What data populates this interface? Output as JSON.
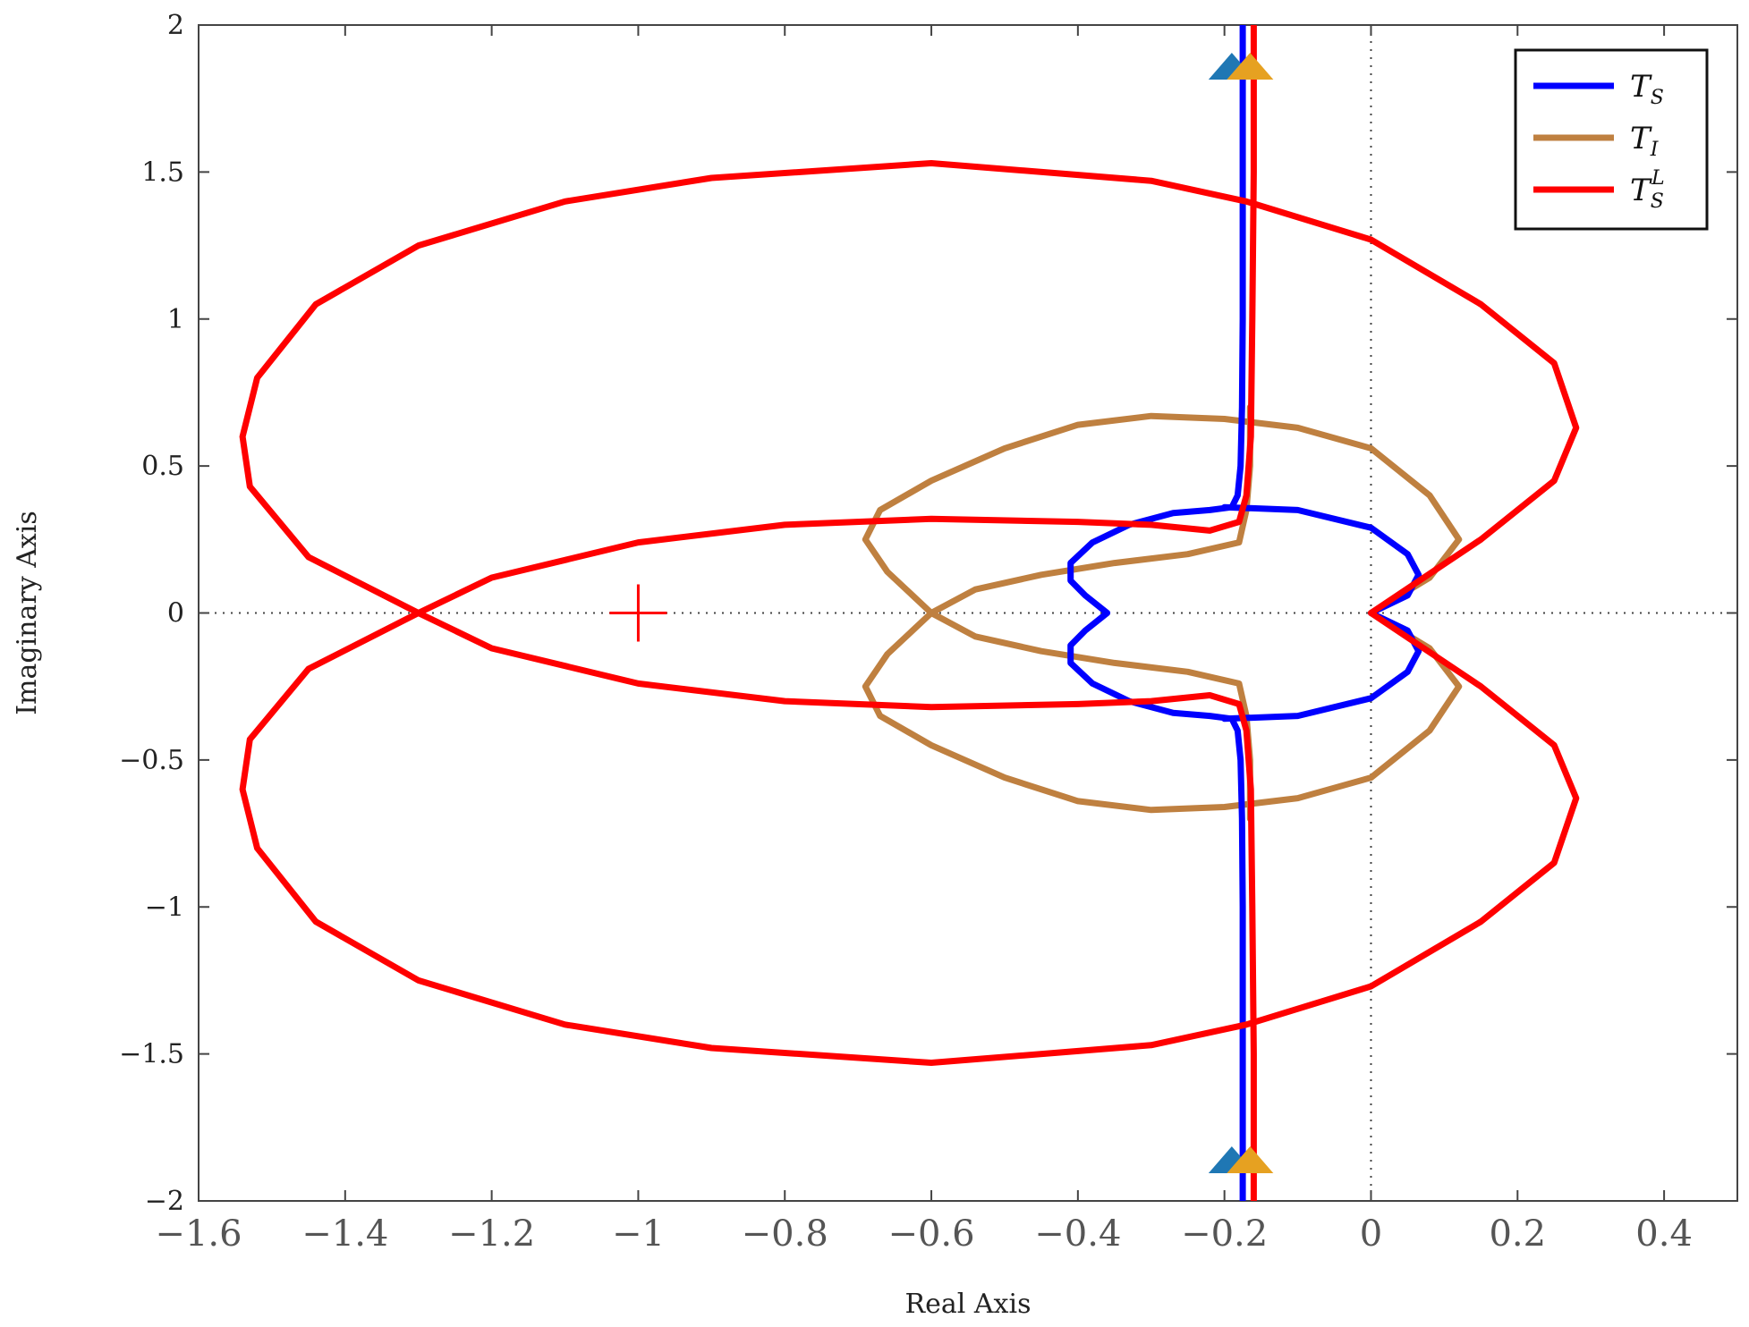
{
  "chart_data": {
    "type": "line",
    "title": "",
    "xlabel": "Real Axis",
    "ylabel": "Imaginary Axis",
    "xlim": [
      -1.6,
      0.5
    ],
    "ylim": [
      -2,
      2
    ],
    "x_ticks": [
      "−1.6",
      "−1.4",
      "−1.2",
      "−1",
      "−0.8",
      "−0.6",
      "−0.4",
      "−0.2",
      "0",
      "0.2",
      "0.4"
    ],
    "x_tick_values": [
      -1.6,
      -1.4,
      -1.2,
      -1,
      -0.8,
      -0.6,
      -0.4,
      -0.2,
      0,
      0.2,
      0.4
    ],
    "y_ticks": [
      "2",
      "1.5",
      "1",
      "0.5",
      "0",
      "−0.5",
      "−1",
      "−1.5",
      "−2"
    ],
    "y_tick_values": [
      2,
      1.5,
      1,
      0.5,
      0,
      -0.5,
      -1,
      -1.5,
      -2
    ],
    "grid": false,
    "reference_lines": {
      "x": 0,
      "y": 0,
      "style": "dotted"
    },
    "critical_point": {
      "x": -1,
      "y": 0,
      "marker": "+",
      "color": "#ff0000"
    },
    "legend_position": "top-right",
    "series": [
      {
        "name": "T_S",
        "label_main": "T",
        "label_sub": "S",
        "label_sup": "",
        "color": "#0000ff",
        "points": [
          [
            -0.175,
            2.0
          ],
          [
            -0.175,
            1.5
          ],
          [
            -0.175,
            1.0
          ],
          [
            -0.176,
            0.7
          ],
          [
            -0.178,
            0.5
          ],
          [
            -0.182,
            0.4
          ],
          [
            -0.19,
            0.36
          ],
          [
            -0.22,
            0.35
          ],
          [
            -0.27,
            0.34
          ],
          [
            -0.33,
            0.3
          ],
          [
            -0.38,
            0.24
          ],
          [
            -0.41,
            0.17
          ],
          [
            -0.41,
            0.11
          ],
          [
            -0.39,
            0.06
          ],
          [
            -0.36,
            0.0
          ],
          [
            -0.39,
            -0.06
          ],
          [
            -0.41,
            -0.11
          ],
          [
            -0.41,
            -0.17
          ],
          [
            -0.38,
            -0.24
          ],
          [
            -0.33,
            -0.3
          ],
          [
            -0.27,
            -0.34
          ],
          [
            -0.22,
            -0.35
          ],
          [
            -0.19,
            -0.36
          ],
          [
            -0.182,
            -0.4
          ],
          [
            -0.178,
            -0.5
          ],
          [
            -0.176,
            -0.7
          ],
          [
            -0.175,
            -1.0
          ],
          [
            -0.175,
            -1.5
          ],
          [
            -0.175,
            -2.0
          ]
        ],
        "closed_loop_branch": [
          [
            -0.2,
            0.36
          ],
          [
            -0.1,
            0.35
          ],
          [
            0.0,
            0.29
          ],
          [
            0.05,
            0.2
          ],
          [
            0.065,
            0.13
          ],
          [
            0.05,
            0.06
          ],
          [
            0.0,
            0.0
          ],
          [
            0.05,
            -0.06
          ],
          [
            0.065,
            -0.13
          ],
          [
            0.05,
            -0.2
          ],
          [
            0.0,
            -0.29
          ],
          [
            -0.1,
            -0.35
          ],
          [
            -0.2,
            -0.36
          ]
        ]
      },
      {
        "name": "T_I",
        "label_main": "T",
        "label_sub": "I",
        "label_sup": "",
        "color": "#bf8040",
        "points": [
          [
            0.0,
            0.0
          ],
          [
            0.08,
            0.12
          ],
          [
            0.12,
            0.25
          ],
          [
            0.08,
            0.4
          ],
          [
            0.0,
            0.56
          ],
          [
            -0.1,
            0.63
          ],
          [
            -0.2,
            0.66
          ],
          [
            -0.3,
            0.67
          ],
          [
            -0.4,
            0.64
          ],
          [
            -0.5,
            0.56
          ],
          [
            -0.6,
            0.45
          ],
          [
            -0.67,
            0.35
          ],
          [
            -0.69,
            0.25
          ],
          [
            -0.66,
            0.14
          ],
          [
            -0.6,
            0.0
          ],
          [
            -0.54,
            -0.08
          ],
          [
            -0.45,
            -0.13
          ],
          [
            -0.35,
            -0.17
          ],
          [
            -0.25,
            -0.2
          ],
          [
            -0.18,
            -0.24
          ],
          [
            -0.17,
            -0.35
          ],
          [
            -0.165,
            -0.5
          ],
          [
            -0.165,
            -0.7
          ]
        ],
        "points_upper_branch": [
          [
            -0.165,
            0.7
          ],
          [
            -0.165,
            0.5
          ],
          [
            -0.17,
            0.35
          ],
          [
            -0.18,
            0.24
          ],
          [
            -0.25,
            0.2
          ],
          [
            -0.35,
            0.17
          ],
          [
            -0.45,
            0.13
          ],
          [
            -0.54,
            0.08
          ],
          [
            -0.6,
            0.0
          ],
          [
            -0.66,
            -0.14
          ],
          [
            -0.69,
            -0.25
          ],
          [
            -0.67,
            -0.35
          ],
          [
            -0.6,
            -0.45
          ],
          [
            -0.5,
            -0.56
          ],
          [
            -0.4,
            -0.64
          ],
          [
            -0.3,
            -0.67
          ],
          [
            -0.2,
            -0.66
          ],
          [
            -0.1,
            -0.63
          ],
          [
            0.0,
            -0.56
          ],
          [
            0.08,
            -0.4
          ],
          [
            0.12,
            -0.25
          ],
          [
            0.08,
            -0.12
          ],
          [
            0.0,
            0.0
          ]
        ]
      },
      {
        "name": "T_S^L",
        "label_main": "T",
        "label_sub": "S",
        "label_sup": "L",
        "color": "#ff0000",
        "points": [
          [
            -0.16,
            2.0
          ],
          [
            -0.16,
            1.5
          ],
          [
            -0.162,
            1.0
          ],
          [
            -0.164,
            0.6
          ],
          [
            -0.17,
            0.4
          ],
          [
            -0.18,
            0.31
          ],
          [
            -0.22,
            0.28
          ],
          [
            -0.3,
            0.3
          ],
          [
            -0.4,
            0.31
          ],
          [
            -0.6,
            0.32
          ],
          [
            -0.8,
            0.3
          ],
          [
            -1.0,
            0.24
          ],
          [
            -1.2,
            0.12
          ],
          [
            -1.3,
            0.0
          ],
          [
            -1.45,
            -0.19
          ],
          [
            -1.53,
            -0.43
          ],
          [
            -1.54,
            -0.6
          ],
          [
            -1.52,
            -0.8
          ],
          [
            -1.44,
            -1.05
          ],
          [
            -1.3,
            -1.25
          ],
          [
            -1.1,
            -1.4
          ],
          [
            -0.9,
            -1.48
          ],
          [
            -0.6,
            -1.53
          ],
          [
            -0.3,
            -1.47
          ],
          [
            -0.17,
            -1.4
          ],
          [
            0.0,
            -1.27
          ],
          [
            0.15,
            -1.05
          ],
          [
            0.25,
            -0.85
          ],
          [
            0.28,
            -0.63
          ],
          [
            0.25,
            -0.45
          ],
          [
            0.15,
            -0.25
          ],
          [
            0.0,
            0.0
          ],
          [
            0.15,
            0.25
          ],
          [
            0.25,
            0.45
          ],
          [
            0.28,
            0.63
          ],
          [
            0.25,
            0.85
          ],
          [
            0.15,
            1.05
          ],
          [
            0.0,
            1.27
          ],
          [
            -0.17,
            1.4
          ],
          [
            -0.3,
            1.47
          ],
          [
            -0.6,
            1.53
          ],
          [
            -0.9,
            1.48
          ],
          [
            -1.1,
            1.4
          ],
          [
            -1.3,
            1.25
          ],
          [
            -1.44,
            1.05
          ],
          [
            -1.52,
            0.8
          ],
          [
            -1.54,
            0.6
          ],
          [
            -1.53,
            0.43
          ],
          [
            -1.45,
            0.19
          ],
          [
            -1.3,
            0.0
          ],
          [
            -1.2,
            -0.12
          ],
          [
            -1.0,
            -0.24
          ],
          [
            -0.8,
            -0.3
          ],
          [
            -0.6,
            -0.32
          ],
          [
            -0.4,
            -0.31
          ],
          [
            -0.3,
            -0.3
          ],
          [
            -0.22,
            -0.28
          ],
          [
            -0.18,
            -0.31
          ],
          [
            -0.17,
            -0.4
          ],
          [
            -0.164,
            -0.6
          ],
          [
            -0.162,
            -1.0
          ],
          [
            -0.16,
            -1.5
          ],
          [
            -0.16,
            -2.0
          ]
        ]
      }
    ],
    "markers": [
      {
        "x": -0.19,
        "y": 1.86,
        "shape": "triangle-up",
        "color": "#1f77b4"
      },
      {
        "x": -0.165,
        "y": 1.86,
        "shape": "triangle-up",
        "color": "#e6a121"
      },
      {
        "x": -0.19,
        "y": -1.86,
        "shape": "triangle-up",
        "color": "#1f77b4"
      },
      {
        "x": -0.165,
        "y": -1.86,
        "shape": "triangle-up",
        "color": "#e6a121"
      }
    ]
  }
}
